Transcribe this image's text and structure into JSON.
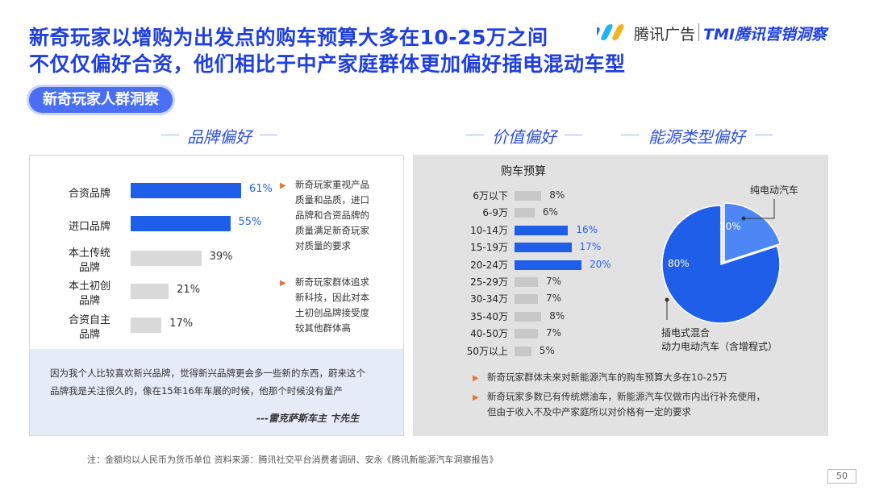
{
  "title_line1": "新奇玩家以增购为出发点的购车预算大多在10-25万之间",
  "title_line2": "不仅仅偏好合资，他们相比于中产家庭群体更加偏好插电混动车型",
  "logo": {
    "brand1": "腾讯广告",
    "brand2": "TMI腾讯营销洞察"
  },
  "tag": "新奇玩家人群洞察",
  "sections": {
    "brand": "品牌偏好",
    "value": "价值偏好",
    "energy": "能源类型偏好"
  },
  "colors": {
    "accent": "#1f5ee8",
    "muted": "#d9d9d9",
    "highlight_text": "#2b63e8"
  },
  "brand_notes": [
    [
      "新奇玩家重视产品",
      "质量和品质，进口",
      "品牌和合资品牌的",
      "质量满足新奇玩家",
      "对质量的要求"
    ],
    [
      "新奇玩家群体追求",
      "新科技，因此对本",
      "土初创品牌接受度",
      "较其他群体高"
    ]
  ],
  "quote": {
    "line1": "因为我个人比较喜欢新兴品牌，觉得新兴品牌更会多一些新的东西，蔚来这个",
    "line2": "品牌我是关注很久的，像在15年16年车展的时候，他那个时候没有量产",
    "author": "---雷克萨斯车主 卞先生"
  },
  "energy_labels": {
    "bev": "纯电动汽车",
    "phev_line1": "插电式混合",
    "phev_line2": "动力电动汽车（含增程式）"
  },
  "value_notes": [
    "新奇玩家群体未来对新能源汽车的购车预算大多在10-25万",
    "新奇玩家多数已有传统燃油车，新能源汽车仅做市内出行补充使用，",
    "但由于收入不及中产家庭所以对价格有一定的要求"
  ],
  "footer": "注：金额均以人民币为货币单位      资料来源：腾讯社交平台消费者调研、安永《腾讯新能源汽车洞察报告》",
  "page": "50",
  "chart_data": [
    {
      "type": "bar",
      "orientation": "horizontal",
      "categories": [
        [
          "合资品牌"
        ],
        [
          "进口品牌"
        ],
        [
          "本土传统",
          "品牌"
        ],
        [
          "本土初创",
          "品牌"
        ],
        [
          "合资自主",
          "品牌"
        ]
      ],
      "values": [
        61,
        55,
        39,
        21,
        17
      ],
      "labels": [
        "61%",
        "55%",
        "39%",
        "21%",
        "17%"
      ],
      "highlight": [
        true,
        true,
        false,
        false,
        false
      ],
      "xlim": [
        0,
        100
      ]
    },
    {
      "type": "bar",
      "orientation": "horizontal",
      "title": "购车预算",
      "categories": [
        "6万以下",
        "6-9万",
        "10-14万",
        "15-19万",
        "20-24万",
        "25-29万",
        "30-34万",
        "35-40万",
        "40-50万",
        "50万以上"
      ],
      "values": [
        8,
        6,
        16,
        17,
        20,
        7,
        7,
        8,
        7,
        5
      ],
      "labels": [
        "8%",
        "6%",
        "16%",
        "17%",
        "20%",
        "7%",
        "7%",
        "8%",
        "7%",
        "5%"
      ],
      "highlight": [
        false,
        false,
        true,
        true,
        true,
        false,
        false,
        false,
        false,
        false
      ],
      "xlim": [
        0,
        25
      ]
    },
    {
      "type": "pie",
      "slices": [
        {
          "name": "纯电动汽车",
          "value": 20,
          "label": "20%",
          "color": "#4d86f5"
        },
        {
          "name": "插电式混合动力电动汽车（含增程式）",
          "value": 80,
          "label": "80%",
          "color": "#1f5ee8"
        }
      ]
    }
  ]
}
